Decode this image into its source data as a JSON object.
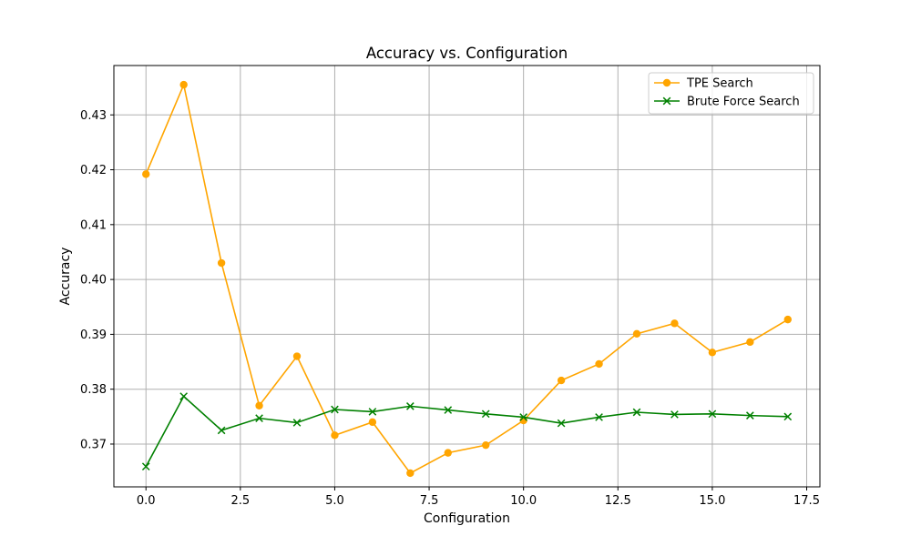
{
  "chart_data": {
    "type": "line",
    "title": "Accuracy vs. Configuration",
    "xlabel": "Configuration",
    "ylabel": "Accuracy",
    "xlim": [
      -0.85,
      17.85
    ],
    "ylim": [
      0.3622,
      0.439
    ],
    "xticks": [
      0.0,
      2.5,
      5.0,
      7.5,
      10.0,
      12.5,
      15.0,
      17.5
    ],
    "xtick_labels": [
      "0.0",
      "2.5",
      "5.0",
      "7.5",
      "10.0",
      "12.5",
      "15.0",
      "17.5"
    ],
    "yticks": [
      0.37,
      0.38,
      0.39,
      0.4,
      0.41,
      0.42,
      0.43
    ],
    "ytick_labels": [
      "0.37",
      "0.38",
      "0.39",
      "0.40",
      "0.41",
      "0.42",
      "0.43"
    ],
    "grid": true,
    "legend_position": "top-right",
    "x": [
      0,
      1,
      2,
      3,
      4,
      5,
      6,
      7,
      8,
      9,
      10,
      11,
      12,
      13,
      14,
      15,
      16,
      17
    ],
    "series": [
      {
        "name": "TPE Search",
        "color": "#ffa500",
        "marker": "circle",
        "values": [
          0.4192,
          0.4355,
          0.403,
          0.377,
          0.386,
          0.3716,
          0.374,
          0.3647,
          0.3684,
          0.3698,
          0.3743,
          0.3816,
          0.3846,
          0.3901,
          0.392,
          0.3867,
          0.3886,
          0.3927
        ]
      },
      {
        "name": "Brute Force Search",
        "color": "#008000",
        "marker": "x",
        "values": [
          0.3659,
          0.3787,
          0.3725,
          0.3747,
          0.3739,
          0.3763,
          0.3759,
          0.3769,
          0.3762,
          0.3755,
          0.3749,
          0.3738,
          0.3749,
          0.3758,
          0.3754,
          0.3755,
          0.3752,
          0.375
        ]
      }
    ]
  }
}
